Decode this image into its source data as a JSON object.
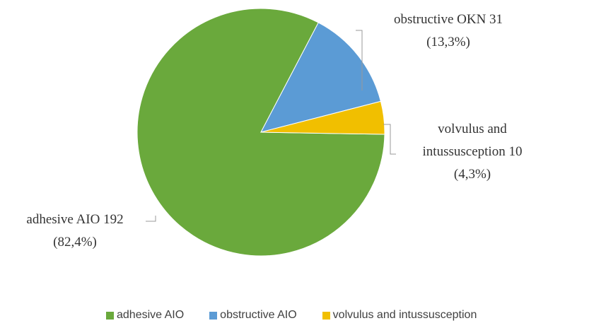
{
  "chart_data": {
    "type": "pie",
    "title": "",
    "slices": [
      {
        "name": "adhesive AIO",
        "value": 192,
        "percent": 82.4,
        "color": "#6aa93c",
        "label_line1": "adhesive AIO 192",
        "label_line2": "(82,4%)"
      },
      {
        "name": "obstructive AIO",
        "value": 31,
        "percent": 13.3,
        "color": "#5b9bd5",
        "label_line1": "obstructive OKN 31",
        "label_line2": "(13,3%)"
      },
      {
        "name": "volvulus and intussusception",
        "value": 10,
        "percent": 4.3,
        "color": "#f1bf00",
        "label_line1": "volvulus and",
        "label_line2": "intussusception 10",
        "label_line3": "(4,3%)"
      }
    ],
    "legend": {
      "position": "bottom",
      "entries": [
        "adhesive AIO",
        "obstructive AIO",
        "volvulus and intussusception"
      ]
    }
  }
}
